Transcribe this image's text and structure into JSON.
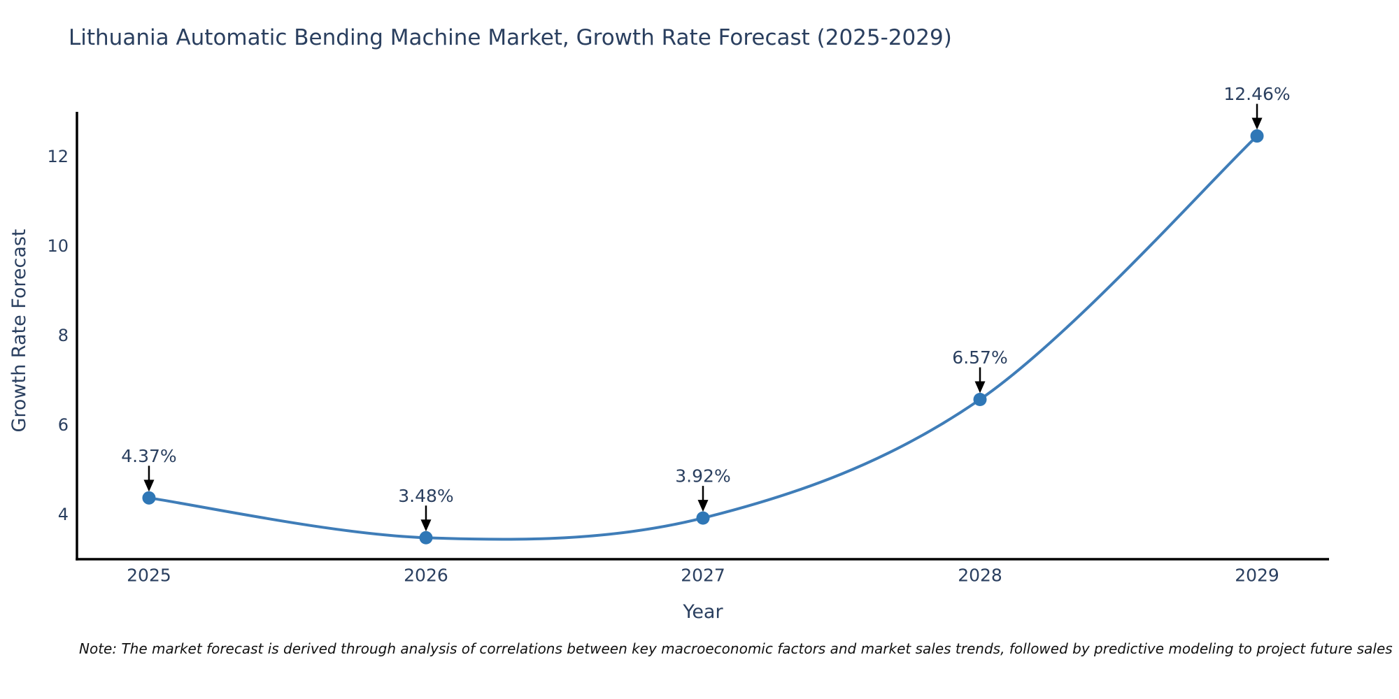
{
  "chart_data": {
    "type": "line",
    "title": "Lithuania Automatic Bending Machine Market, Growth Rate Forecast (2025-2029)",
    "xlabel": "Year",
    "ylabel": "Growth Rate Forecast",
    "x": [
      2025,
      2026,
      2027,
      2028,
      2029
    ],
    "values": [
      4.37,
      3.48,
      3.92,
      6.57,
      12.46
    ],
    "point_labels": [
      "4.37%",
      "3.48%",
      "3.92%",
      "6.57%",
      "12.46%"
    ],
    "xticks": [
      "2025",
      "2026",
      "2027",
      "2028",
      "2029"
    ],
    "yticks": [
      4,
      6,
      8,
      10,
      12
    ],
    "xlim": [
      2024.74,
      2029.26
    ],
    "ylim": [
      3,
      13
    ],
    "grid": false,
    "legend": "none",
    "curve_style": "spline",
    "line_color": "#3f7db8",
    "marker_color": "#2f77b6",
    "axis_color": "#000000",
    "text_color": "#2a3f5f",
    "arrow_color": "#000000",
    "note": "Note: The market forecast is derived through analysis of correlations between key macroeconomic factors and market sales trends, followed by predictive modeling to project future sales"
  }
}
